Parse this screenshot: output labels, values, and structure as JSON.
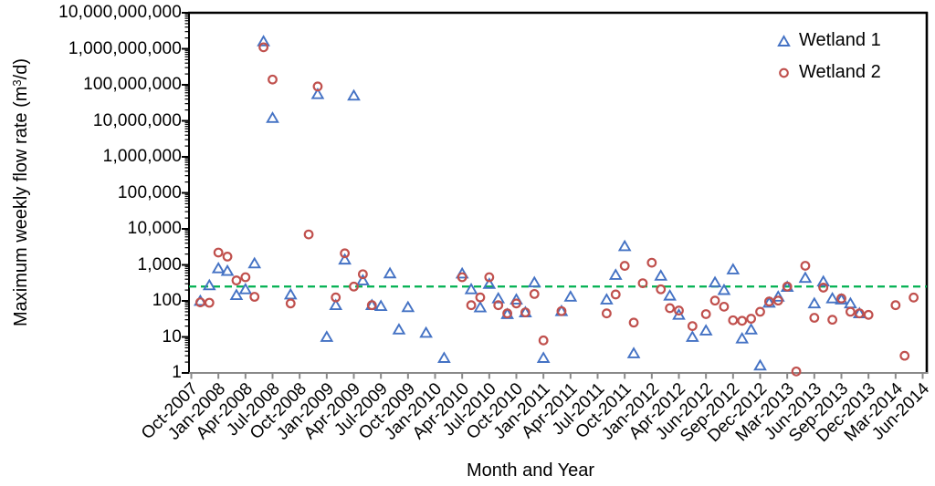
{
  "figure": {
    "background": "#ffffff",
    "plot_border_color": "#000000",
    "x_axis_color": "#898989"
  },
  "chart_data": {
    "type": "scatter",
    "title": "",
    "xlabel": "Month and Year",
    "ylabel": "Maximum weekly flow rate (m³/d)",
    "ylabel_pre": "Maximum weekly flow rate (m",
    "ylabel_sup": "3",
    "ylabel_post": "/d)",
    "y_axis": {
      "scale": "log",
      "min": 1,
      "max": 10000000000
    },
    "y_ticks": [
      "1",
      "10",
      "100",
      "1,000",
      "10,000",
      "100,000",
      "1,000,000",
      "10,000,000",
      "100,000,000",
      "1,000,000,000",
      "10,000,000,000"
    ],
    "x_tick_labels": [
      "Oct-2007",
      "Jan-2008",
      "Apr-2008",
      "Jul-2008",
      "Oct-2008",
      "Jan-2009",
      "Apr-2009",
      "Jul-2009",
      "Oct-2009",
      "Jan-2010",
      "Apr-2010",
      "Jul-2010",
      "Oct-2010",
      "Jan-2011",
      "Apr-2011",
      "Jul-2011",
      "Oct-2011",
      "Jan-2012",
      "Apr-2012",
      "Jun-2012",
      "Sep-2012",
      "Dec-2012",
      "Mar-2013",
      "Jun-2013",
      "Sep-2013",
      "Dec-2013",
      "Mar-2014",
      "Jun-2014"
    ],
    "legend_position": "top-right-inside",
    "grid": false,
    "reference_line": {
      "value": 250,
      "color": "#00B050",
      "style": "dashed"
    },
    "points_format": [
      "month",
      "value_m3_per_day"
    ],
    "series": [
      {
        "name": "Wetland 1",
        "marker": "triangle",
        "color": "#4472C4",
        "points": [
          [
            "Nov-2007",
            100
          ],
          [
            "Dec-2007",
            270
          ],
          [
            "Jan-2008",
            800
          ],
          [
            "Feb-2008",
            680
          ],
          [
            "Mar-2008",
            145
          ],
          [
            "Apr-2008",
            210
          ],
          [
            "May-2008",
            1100
          ],
          [
            "Jun-2008",
            1600000000
          ],
          [
            "Jul-2008",
            12000000
          ],
          [
            "Sep-2008",
            150
          ],
          [
            "Dec-2008",
            55000000
          ],
          [
            "Jan-2009",
            10
          ],
          [
            "Feb-2009",
            76
          ],
          [
            "Mar-2009",
            1400
          ],
          [
            "Apr-2009",
            50000000
          ],
          [
            "May-2009",
            370
          ],
          [
            "Jun-2009",
            76
          ],
          [
            "Jul-2009",
            72
          ],
          [
            "Aug-2009",
            580
          ],
          [
            "Sep-2009",
            16
          ],
          [
            "Oct-2009",
            67
          ],
          [
            "Dec-2009",
            13
          ],
          [
            "Feb-2010",
            2.6
          ],
          [
            "Apr-2010",
            575
          ],
          [
            "May-2010",
            210
          ],
          [
            "Jun-2010",
            66
          ],
          [
            "Jul-2010",
            295
          ],
          [
            "Aug-2010",
            117
          ],
          [
            "Sep-2010",
            43
          ],
          [
            "Oct-2010",
            109
          ],
          [
            "Nov-2010",
            48
          ],
          [
            "Dec-2010",
            325
          ],
          [
            "Jan-2011",
            2.6
          ],
          [
            "Mar-2011",
            52
          ],
          [
            "Apr-2011",
            131
          ],
          [
            "Aug-2011",
            109
          ],
          [
            "Sep-2011",
            525
          ],
          [
            "Oct-2011",
            3300
          ],
          [
            "Nov-2011",
            3.5
          ],
          [
            "Feb-2012",
            500
          ],
          [
            "Mar-2012",
            140
          ],
          [
            "Apr-2012",
            41
          ],
          [
            "May-2012",
            10
          ],
          [
            "Jun-2012",
            15
          ],
          [
            "Jul-2012",
            325
          ],
          [
            "Aug-2012",
            200
          ],
          [
            "Sep-2012",
            745
          ],
          [
            "Oct-2012",
            9
          ],
          [
            "Nov-2012",
            16
          ],
          [
            "Dec-2012",
            1.6
          ],
          [
            "Jan-2013",
            89
          ],
          [
            "Feb-2013",
            131
          ],
          [
            "Mar-2013",
            245
          ],
          [
            "May-2013",
            435
          ],
          [
            "Jun-2013",
            85
          ],
          [
            "Jul-2013",
            345
          ],
          [
            "Aug-2013",
            117
          ],
          [
            "Sep-2013",
            109
          ],
          [
            "Oct-2013",
            85
          ],
          [
            "Nov-2013",
            45
          ]
        ]
      },
      {
        "name": "Wetland 2",
        "marker": "circle",
        "color": "#C0504D",
        "points": [
          [
            "Nov-2007",
            91
          ],
          [
            "Dec-2007",
            89
          ],
          [
            "Jan-2008",
            2200
          ],
          [
            "Feb-2008",
            1700
          ],
          [
            "Mar-2008",
            370
          ],
          [
            "Apr-2008",
            455
          ],
          [
            "May-2008",
            130
          ],
          [
            "Jun-2008",
            1100000000
          ],
          [
            "Jul-2008",
            140000000
          ],
          [
            "Sep-2008",
            85
          ],
          [
            "Nov-2008",
            7000
          ],
          [
            "Dec-2008",
            90000000
          ],
          [
            "Feb-2009",
            125
          ],
          [
            "Mar-2009",
            2100
          ],
          [
            "Apr-2009",
            250
          ],
          [
            "May-2009",
            550
          ],
          [
            "Jun-2009",
            76
          ],
          [
            "Apr-2010",
            455
          ],
          [
            "May-2010",
            76
          ],
          [
            "Jun-2010",
            125
          ],
          [
            "Jul-2010",
            455
          ],
          [
            "Aug-2010",
            76
          ],
          [
            "Sep-2010",
            45
          ],
          [
            "Oct-2010",
            85
          ],
          [
            "Nov-2010",
            48
          ],
          [
            "Dec-2010",
            156
          ],
          [
            "Jan-2011",
            8
          ],
          [
            "Mar-2011",
            52
          ],
          [
            "Aug-2011",
            45
          ],
          [
            "Sep-2011",
            151
          ],
          [
            "Oct-2011",
            940
          ],
          [
            "Nov-2011",
            25
          ],
          [
            "Dec-2011",
            310
          ],
          [
            "Jan-2012",
            1150
          ],
          [
            "Feb-2012",
            210
          ],
          [
            "Mar-2012",
            63
          ],
          [
            "Apr-2012",
            54
          ],
          [
            "May-2012",
            20
          ],
          [
            "Jun-2012",
            43
          ],
          [
            "Jul-2012",
            102
          ],
          [
            "Aug-2012",
            69
          ],
          [
            "Sep-2012",
            29
          ],
          [
            "Oct-2012",
            28
          ],
          [
            "Nov-2012",
            32
          ],
          [
            "Dec-2012",
            50
          ],
          [
            "Jan-2013",
            96
          ],
          [
            "Feb-2013",
            102
          ],
          [
            "Mar-2013",
            250
          ],
          [
            "Apr-2013",
            1.1
          ],
          [
            "May-2013",
            945
          ],
          [
            "Jun-2013",
            34
          ],
          [
            "Jul-2013",
            234
          ],
          [
            "Aug-2013",
            30
          ],
          [
            "Sep-2013",
            117
          ],
          [
            "Oct-2013",
            50
          ],
          [
            "Nov-2013",
            45
          ],
          [
            "Dec-2013",
            41
          ],
          [
            "Mar-2014",
            76
          ],
          [
            "Apr-2014",
            3
          ],
          [
            "May-2014",
            124
          ]
        ]
      }
    ]
  }
}
